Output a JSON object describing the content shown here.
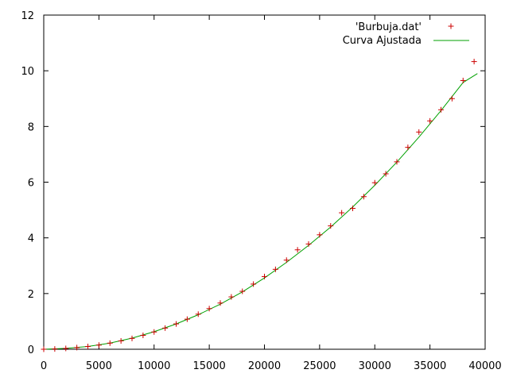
{
  "chart_data": {
    "type": "scatter",
    "xlim": [
      0,
      40000
    ],
    "ylim": [
      0,
      12
    ],
    "xticks": [
      0,
      5000,
      10000,
      15000,
      20000,
      25000,
      30000,
      35000,
      40000
    ],
    "yticks": [
      0,
      2,
      4,
      6,
      8,
      10,
      12
    ],
    "grid": false,
    "legend_position": "top-right",
    "series": [
      {
        "name": "'Burbuja.dat'",
        "style": "points",
        "marker": "plus",
        "color": "#cc0000",
        "x": [
          0,
          1000,
          2000,
          3000,
          4000,
          5000,
          6000,
          7000,
          8000,
          9000,
          10000,
          11000,
          12000,
          13000,
          14000,
          15000,
          16000,
          17000,
          18000,
          19000,
          20000,
          21000,
          22000,
          23000,
          24000,
          25000,
          26000,
          27000,
          28000,
          29000,
          30000,
          31000,
          32000,
          33000,
          34000,
          35000,
          36000,
          37000,
          38000,
          39000
        ],
        "y": [
          0.0,
          0.01,
          0.03,
          0.06,
          0.1,
          0.15,
          0.22,
          0.3,
          0.39,
          0.5,
          0.62,
          0.76,
          0.91,
          1.08,
          1.26,
          1.46,
          1.66,
          1.88,
          2.08,
          2.34,
          2.61,
          2.87,
          3.2,
          3.57,
          3.78,
          4.11,
          4.43,
          4.9,
          5.06,
          5.48,
          5.98,
          6.3,
          6.73,
          7.25,
          7.8,
          8.2,
          8.6,
          9.0,
          9.65,
          10.33
        ]
      },
      {
        "name": "Curva Ajustada",
        "style": "line",
        "color": "#00a000",
        "x": [
          0,
          2000,
          4000,
          6000,
          8000,
          10000,
          12000,
          14000,
          16000,
          18000,
          20000,
          22000,
          24000,
          26000,
          28000,
          30000,
          32000,
          34000,
          36000,
          38000,
          39300
        ],
        "y": [
          0.0,
          0.03,
          0.1,
          0.22,
          0.4,
          0.63,
          0.91,
          1.24,
          1.62,
          2.06,
          2.56,
          3.12,
          3.73,
          4.39,
          5.11,
          5.89,
          6.72,
          7.62,
          8.57,
          9.58,
          9.9
        ]
      }
    ]
  }
}
